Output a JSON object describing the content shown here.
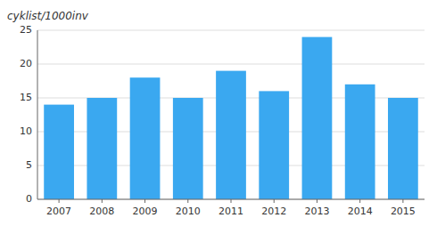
{
  "chart_data": {
    "type": "bar",
    "ylabel": "cyklist/1000inv",
    "categories": [
      "2007",
      "2008",
      "2009",
      "2010",
      "2011",
      "2012",
      "2013",
      "2014",
      "2015"
    ],
    "values": [
      14,
      15,
      18,
      15,
      19,
      16,
      24,
      17,
      15
    ],
    "color": "#3AA8F0",
    "ylim": [
      0,
      25
    ],
    "yticks": [
      0,
      5,
      10,
      15,
      20,
      25
    ],
    "grid": true
  }
}
